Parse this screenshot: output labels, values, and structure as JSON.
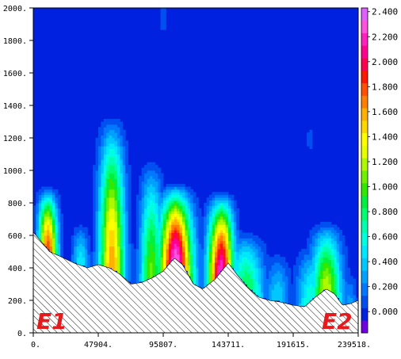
{
  "chart_data": {
    "type": "heatmap",
    "title": "",
    "xlabel": "",
    "ylabel": "",
    "x_ticks": [
      "0.",
      "47904.",
      "95807.",
      "143711.",
      "191615.",
      "239518."
    ],
    "y_ticks": [
      "0.",
      "200.",
      "400.",
      "600.",
      "800.",
      "1000.",
      "1200.",
      "1400.",
      "1600.",
      "1800.",
      "2000."
    ],
    "xlim": [
      0,
      239518
    ],
    "ylim": [
      0,
      2000
    ],
    "colorbar": {
      "labels": [
        "0.000",
        "0.200",
        "0.400",
        "0.600",
        "0.800",
        "1.000",
        "1.200",
        "1.400",
        "1.600",
        "1.800",
        "2.000",
        "2.200",
        "2.400"
      ],
      "levels": [
        -0.2,
        0,
        0.1,
        0.2,
        0.3,
        0.4,
        0.5,
        0.6,
        0.7,
        0.8,
        0.9,
        1.0,
        1.1,
        1.2,
        1.3,
        1.4,
        1.5,
        1.6,
        1.7,
        1.8,
        1.9,
        2.0,
        2.1,
        2.2,
        2.3,
        2.4,
        2.6
      ],
      "colors": [
        "#7000e0",
        "#0022e0",
        "#0050f0",
        "#0078ff",
        "#00a0ff",
        "#00c8ff",
        "#00e8ff",
        "#00ffe0",
        "#00ffb0",
        "#00ff70",
        "#00f040",
        "#30e800",
        "#70f000",
        "#b0f800",
        "#e8ff00",
        "#ffff00",
        "#ffd800",
        "#ffb000",
        "#ff8000",
        "#ff5000",
        "#ff1800",
        "#ff0050",
        "#ff0090",
        "#ff20c0",
        "#ff50e0",
        "#e060ff"
      ]
    },
    "terrain_profile": [
      [
        0,
        620
      ],
      [
        6000,
        560
      ],
      [
        12000,
        500
      ],
      [
        20000,
        470
      ],
      [
        30000,
        430
      ],
      [
        40000,
        400
      ],
      [
        47904,
        420
      ],
      [
        56000,
        400
      ],
      [
        64000,
        360
      ],
      [
        72000,
        300
      ],
      [
        80000,
        310
      ],
      [
        88000,
        340
      ],
      [
        95807,
        380
      ],
      [
        104000,
        460
      ],
      [
        110000,
        420
      ],
      [
        118000,
        300
      ],
      [
        125000,
        270
      ],
      [
        134000,
        330
      ],
      [
        143711,
        430
      ],
      [
        150000,
        360
      ],
      [
        158000,
        280
      ],
      [
        166000,
        220
      ],
      [
        174000,
        200
      ],
      [
        182000,
        190
      ],
      [
        191615,
        170
      ],
      [
        200000,
        160
      ],
      [
        208000,
        220
      ],
      [
        216000,
        270
      ],
      [
        222000,
        240
      ],
      [
        228000,
        170
      ],
      [
        234000,
        180
      ],
      [
        239518,
        200
      ]
    ],
    "plumes": [
      {
        "x": 11000,
        "w": 6500,
        "top": 910,
        "peak": 1.9
      },
      {
        "x": 35000,
        "w": 6000,
        "top": 690,
        "peak": 0.6
      },
      {
        "x": 58000,
        "w": 9000,
        "top": 1360,
        "peak": 1.7
      },
      {
        "x": 87000,
        "w": 8000,
        "top": 1090,
        "peak": 1.15
      },
      {
        "x": 105000,
        "w": 12000,
        "top": 930,
        "peak": 2.4
      },
      {
        "x": 138000,
        "w": 9000,
        "top": 880,
        "peak": 2.3
      },
      {
        "x": 158000,
        "w": 12000,
        "top": 640,
        "peak": 0.9
      },
      {
        "x": 180000,
        "w": 9000,
        "top": 520,
        "peak": 0.5
      },
      {
        "x": 204000,
        "w": 10000,
        "top": 560,
        "peak": 0.7
      },
      {
        "x": 216000,
        "w": 11000,
        "top": 700,
        "peak": 1.3
      },
      {
        "x": 233000,
        "w": 5000,
        "top": 400,
        "peak": 0.35
      }
    ],
    "isolated_patches": [
      {
        "x": 96000,
        "y": 1950,
        "rx": 2300,
        "ry": 90
      },
      {
        "x": 204000,
        "y": 1190,
        "rx": 2000,
        "ry": 55
      }
    ],
    "endpoints": {
      "start": "E1",
      "end": "E2"
    }
  }
}
